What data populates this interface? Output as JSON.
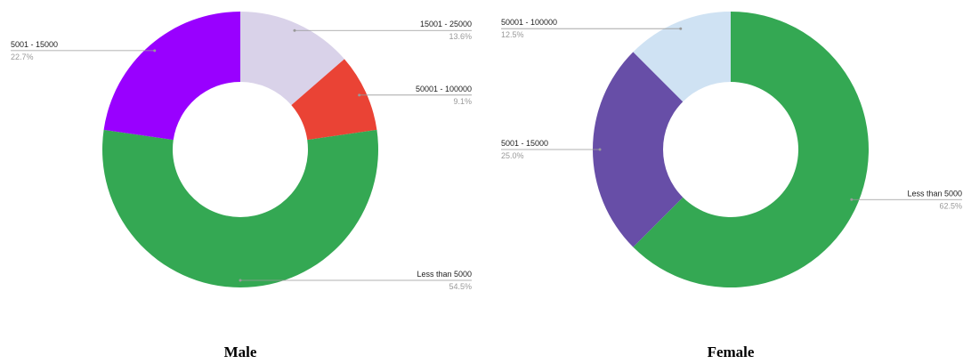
{
  "chart_data": [
    {
      "type": "pie",
      "title": "Male",
      "categories": [
        "15001 - 25000",
        "50001 - 100000",
        "Less than 5000",
        "5001 - 15000"
      ],
      "values": [
        13.6,
        9.1,
        54.5,
        22.7
      ],
      "value_labels": [
        "13.6%",
        "9.1%",
        "54.5%",
        "22.7%"
      ],
      "colors": [
        "#d9d2e9",
        "#ea4335",
        "#34a853",
        "#9900ff"
      ]
    },
    {
      "type": "pie",
      "title": "Female",
      "categories": [
        "Less than 5000",
        "5001 - 15000",
        "50001 - 100000"
      ],
      "values": [
        62.5,
        25.0,
        12.5
      ],
      "value_labels": [
        "62.5%",
        "25.0%",
        "12.5%"
      ],
      "colors": [
        "#34a853",
        "#674ea7",
        "#cfe2f3"
      ]
    }
  ]
}
